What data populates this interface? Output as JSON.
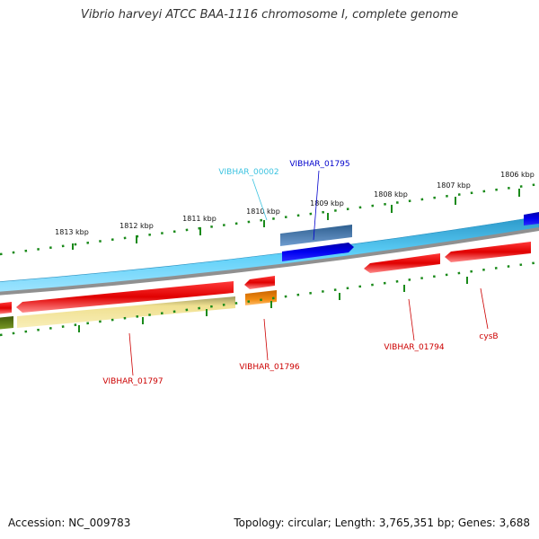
{
  "title": "Vibrio harveyi ATCC BAA-1116 chromosome I, complete genome",
  "footer": {
    "accession": "Accession: NC_009783",
    "summary": "Topology: circular; Length: 3,765,351 bp; Genes: 3,688"
  },
  "ticks": [
    "1813 kbp",
    "1812 kbp",
    "1811 kbp",
    "1810 kbp",
    "1809 kbp",
    "1808 kbp",
    "1807 kbp",
    "1806 kbp"
  ],
  "gene_labels": {
    "vibhar_00002": "VIBHAR_00002",
    "vibhar_01795": "VIBHAR_01795",
    "vibhar_01797": "VIBHAR_01797",
    "vibhar_01796": "VIBHAR_01796",
    "vibhar_01794": "VIBHAR_01794",
    "cysb": "cysB"
  },
  "colors": {
    "sky_gene": "#4fc3f7",
    "blue_gene": "#0000e0",
    "red_gene": "#e00000",
    "orange_gene": "#f08000",
    "yellow_gene": "#f2e49a",
    "olive_gene": "#5f7f10",
    "tick_green": "#1a8a1a",
    "label_cyan": "#3cc3e0",
    "label_blue": "#0000cc",
    "label_red": "#cc0000"
  }
}
